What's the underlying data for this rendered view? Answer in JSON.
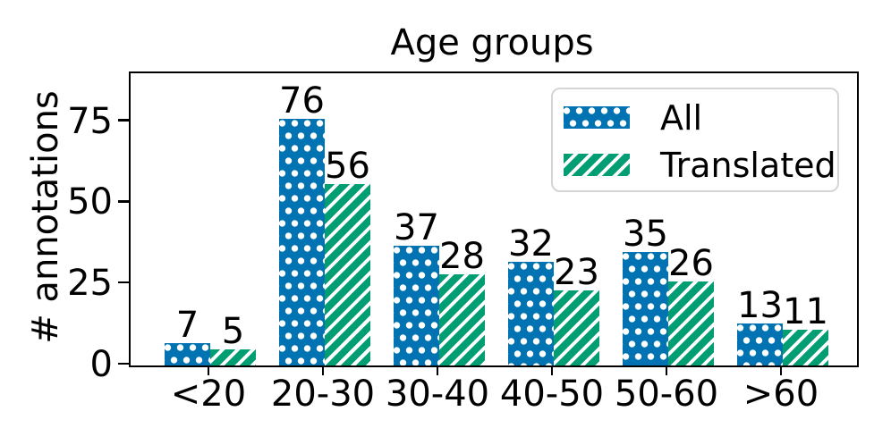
{
  "chart_data": {
    "type": "bar",
    "title": "Age groups",
    "xlabel": "",
    "ylabel": "# annotations",
    "categories": [
      "<20",
      "20-30",
      "30-40",
      "40-50",
      "50-60",
      ">60"
    ],
    "series": [
      {
        "name": "All",
        "values": [
          7,
          76,
          37,
          32,
          35,
          13
        ],
        "color": "#0173b2",
        "pattern": "white-dots"
      },
      {
        "name": "Translated",
        "values": [
          5,
          56,
          28,
          23,
          26,
          11
        ],
        "color": "#029e73",
        "pattern": "white-diagonal-stripes"
      }
    ],
    "yticks": [
      "0",
      "25",
      "50",
      "75"
    ],
    "ylim": [
      0,
      90
    ],
    "grid": false,
    "bar_value_labels_shown": true,
    "legend_position": "upper-right",
    "text_color": "#000000",
    "background_color": "#ffffff"
  }
}
